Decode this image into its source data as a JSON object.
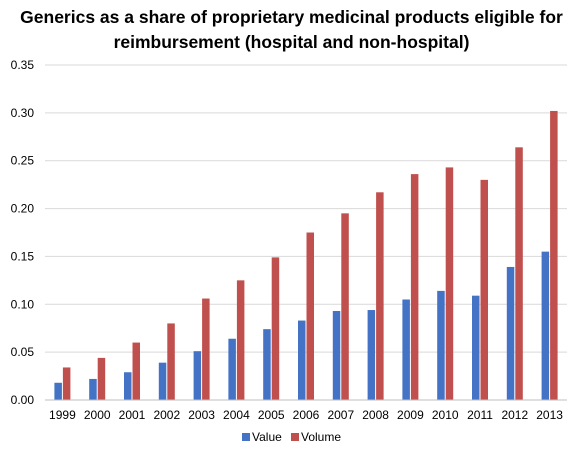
{
  "chart_data": {
    "type": "bar",
    "title_lines": [
      "Generics as a share of proprietary medicinal products eligible for",
      "reimbursement (hospital and non-hospital)"
    ],
    "xlabel": "",
    "ylabel": "",
    "categories": [
      "1999",
      "2000",
      "2001",
      "2002",
      "2003",
      "2004",
      "2005",
      "2006",
      "2007",
      "2008",
      "2009",
      "2010",
      "2011",
      "2012",
      "2013"
    ],
    "series": [
      {
        "name": "Value",
        "color": "#4472c4",
        "values": [
          0.018,
          0.022,
          0.029,
          0.039,
          0.051,
          0.064,
          0.074,
          0.083,
          0.093,
          0.094,
          0.105,
          0.114,
          0.109,
          0.139,
          0.155
        ]
      },
      {
        "name": "Volume",
        "color": "#c0504d",
        "values": [
          0.034,
          0.044,
          0.06,
          0.08,
          0.106,
          0.125,
          0.149,
          0.175,
          0.195,
          0.217,
          0.236,
          0.243,
          0.23,
          0.264,
          0.302
        ]
      }
    ],
    "ylim": [
      0,
      0.35
    ],
    "yticks": [
      "0.00",
      "0.05",
      "0.10",
      "0.15",
      "0.20",
      "0.25",
      "0.30",
      "0.35"
    ],
    "grid": true,
    "gridline_color": "#d9d9d9",
    "legend_position": "bottom-center"
  }
}
